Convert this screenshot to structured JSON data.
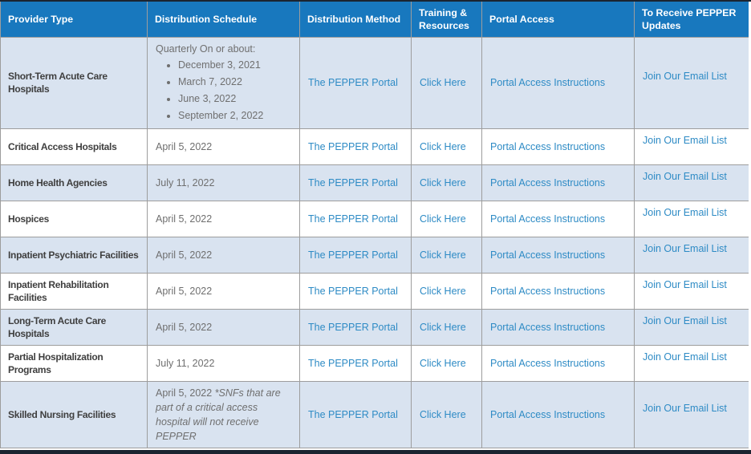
{
  "colors": {
    "header_bg": "#1878be",
    "header_text": "#ffffff",
    "row_shaded_bg": "#d9e3f0",
    "row_plain_bg": "#ffffff",
    "link": "#2e8bc5",
    "border": "#9d9d9d",
    "provider_text": "#3f3f3f",
    "body_text": "#6f6f6f",
    "edge_bar": "#1b2430"
  },
  "table": {
    "columns": [
      "Provider Type",
      "Distribution Schedule",
      "Distribution Method",
      "Training & Resources",
      "Portal Access",
      "To Receive PEPPER Updates"
    ],
    "rows": [
      {
        "provider": "Short-Term Acute Care Hospitals",
        "schedule": {
          "intro": "Quarterly On or about:",
          "dates": [
            "December 3, 2021",
            "March 7, 2022",
            "June 3, 2022",
            "September 2, 2022"
          ]
        },
        "method": "The PEPPER Portal",
        "training": "Click Here",
        "portal_access": "Portal Access Instructions",
        "updates": "Join Our Email List"
      },
      {
        "provider": "Critical Access Hospitals",
        "schedule": {
          "text": "April 5, 2022"
        },
        "method": "The PEPPER Portal",
        "training": "Click Here",
        "portal_access": "Portal Access Instructions",
        "updates": "Join Our Email List"
      },
      {
        "provider": "Home Health Agencies",
        "schedule": {
          "text": "July 11, 2022"
        },
        "method": "The PEPPER Portal",
        "training": "Click Here",
        "portal_access": "Portal Access Instructions",
        "updates": "Join Our Email List"
      },
      {
        "provider": "Hospices",
        "schedule": {
          "text": "April 5, 2022"
        },
        "method": "The PEPPER Portal",
        "training": "Click Here",
        "portal_access": "Portal Access Instructions",
        "updates": "Join Our Email List"
      },
      {
        "provider": "Inpatient Psychiatric Facilities",
        "schedule": {
          "text": "April 5, 2022"
        },
        "method": "The PEPPER Portal",
        "training": "Click Here",
        "portal_access": "Portal Access Instructions",
        "updates": "Join Our Email List"
      },
      {
        "provider": "Inpatient Rehabilitation Facilities",
        "schedule": {
          "text": "April 5, 2022"
        },
        "method": "The PEPPER Portal",
        "training": "Click Here",
        "portal_access": "Portal Access Instructions",
        "updates": "Join Our Email List"
      },
      {
        "provider": "Long-Term Acute Care Hospitals",
        "schedule": {
          "text": "April 5, 2022"
        },
        "method": "The PEPPER Portal",
        "training": "Click Here",
        "portal_access": "Portal Access Instructions",
        "updates": "Join Our Email List"
      },
      {
        "provider": "Partial Hospitalization Programs",
        "schedule": {
          "text": "July 11, 2022"
        },
        "method": "The PEPPER Portal",
        "training": "Click Here",
        "portal_access": "Portal Access Instructions",
        "updates": "Join Our Email List"
      },
      {
        "provider": "Skilled Nursing Facilities",
        "schedule": {
          "text": "April 5, 2022",
          "note": "*SNFs that are part of a critical access hospital will not receive PEPPER"
        },
        "method": "The PEPPER Portal",
        "training": "Click Here",
        "portal_access": "Portal Access Instructions",
        "updates": "Join Our Email List"
      }
    ]
  }
}
